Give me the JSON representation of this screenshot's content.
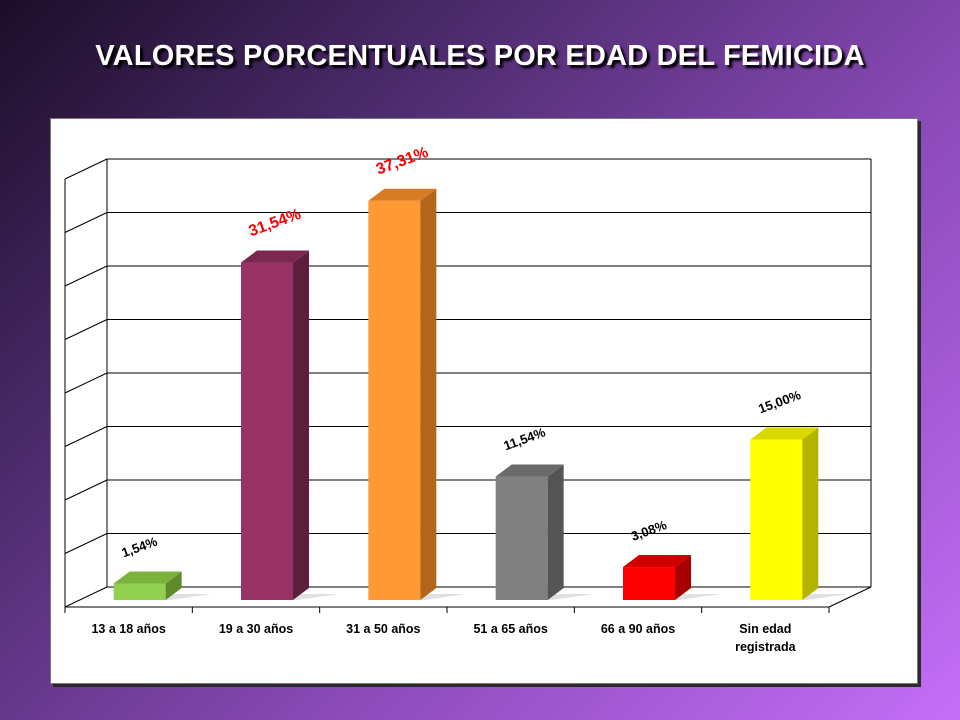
{
  "title": "VALORES PORCENTUALES POR EDAD DEL FEMICIDA",
  "chart_data": {
    "type": "bar",
    "title": "VALORES PORCENTUALES POR EDAD DEL FEMICIDA",
    "xlabel": "",
    "ylabel": "",
    "categories": [
      [
        "13 a 18 años"
      ],
      [
        "19 a 30 años"
      ],
      [
        "31 a 50 años"
      ],
      [
        "51 a 65 años"
      ],
      [
        "66 a 90 años"
      ],
      [
        "Sin edad",
        "registrada"
      ]
    ],
    "values": [
      1.54,
      31.54,
      37.31,
      11.54,
      3.08,
      15.0
    ],
    "data_labels": [
      "1,54%",
      "31,54%",
      "37,31%",
      "11,54%",
      "3,08%",
      "15,00%"
    ],
    "ylim": [
      0,
      40
    ],
    "grid": true,
    "colors": [
      "#92d050",
      "#993366",
      "#ff9933",
      "#808080",
      "#ff0000",
      "#ffff00"
    ],
    "side_colors": [
      "#5f8a2a",
      "#5e1f3e",
      "#b3651a",
      "#555555",
      "#a80000",
      "#b3b300"
    ],
    "top_colors": [
      "#7bb23c",
      "#7a284f",
      "#d97b22",
      "#6a6a6a",
      "#d10000",
      "#d9d900"
    ],
    "label_colors": [
      "#000000",
      "#ff0000",
      "#ff0000",
      "#000000",
      "#000000",
      "#000000"
    ]
  }
}
